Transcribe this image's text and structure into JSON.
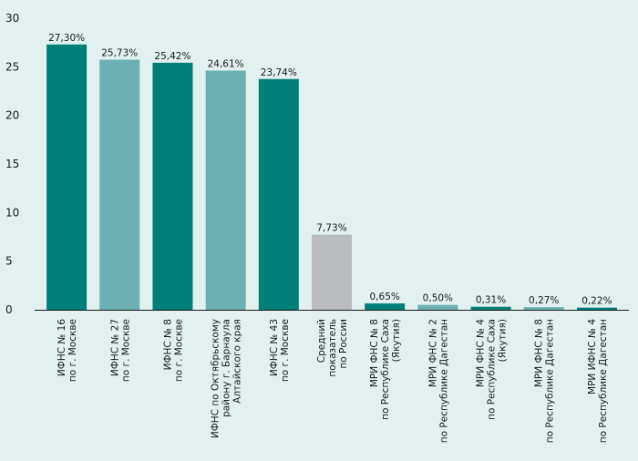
{
  "chart_data": {
    "type": "bar",
    "title": "",
    "xlabel": "",
    "ylabel": "",
    "ylim": [
      0,
      30
    ],
    "yticks": [
      0,
      5,
      10,
      15,
      20,
      25,
      30
    ],
    "grid": false,
    "legend": "none",
    "categories": [
      [
        "ИФНС № 16",
        "по г. Москве"
      ],
      [
        "ИФНС № 27",
        "по г. Москве"
      ],
      [
        "ИФНС № 8",
        "по г. Москве"
      ],
      [
        "ИФНС по Октябрьскому",
        "району г. Барнаула",
        "Алтайского края"
      ],
      [
        "ИФНС № 43",
        "по г. Москве"
      ],
      [
        "Средний",
        "показатель",
        "по России"
      ],
      [
        "МРИ ФНС № 8",
        "по Республике Саха",
        "(Якутия)"
      ],
      [
        "МРИ ФНС № 2",
        "по Республике Дагестан"
      ],
      [
        "МРИ ФНС № 4",
        "по Республике Саха",
        "(Якутия)"
      ],
      [
        "МРИ ФНС № 8",
        "по Республике Дагестан"
      ],
      [
        "МРИ ИФНС № 4",
        "по Республике Дагестан"
      ]
    ],
    "values": [
      27.3,
      25.73,
      25.42,
      24.61,
      23.74,
      7.73,
      0.65,
      0.5,
      0.31,
      0.27,
      0.22
    ],
    "value_labels": [
      "27,30%",
      "25,73%",
      "25,42%",
      "24,61%",
      "23,74%",
      "7,73%",
      "0,65%",
      "0,50%",
      "0,31%",
      "0,27%",
      "0,22%"
    ],
    "colors": [
      "#007f78",
      "#6cb0b4",
      "#007f78",
      "#6cb0b4",
      "#007f78",
      "#b9bbbe",
      "#007f78",
      "#6cb0b4",
      "#007f78",
      "#6cb0b4",
      "#007f78"
    ]
  }
}
